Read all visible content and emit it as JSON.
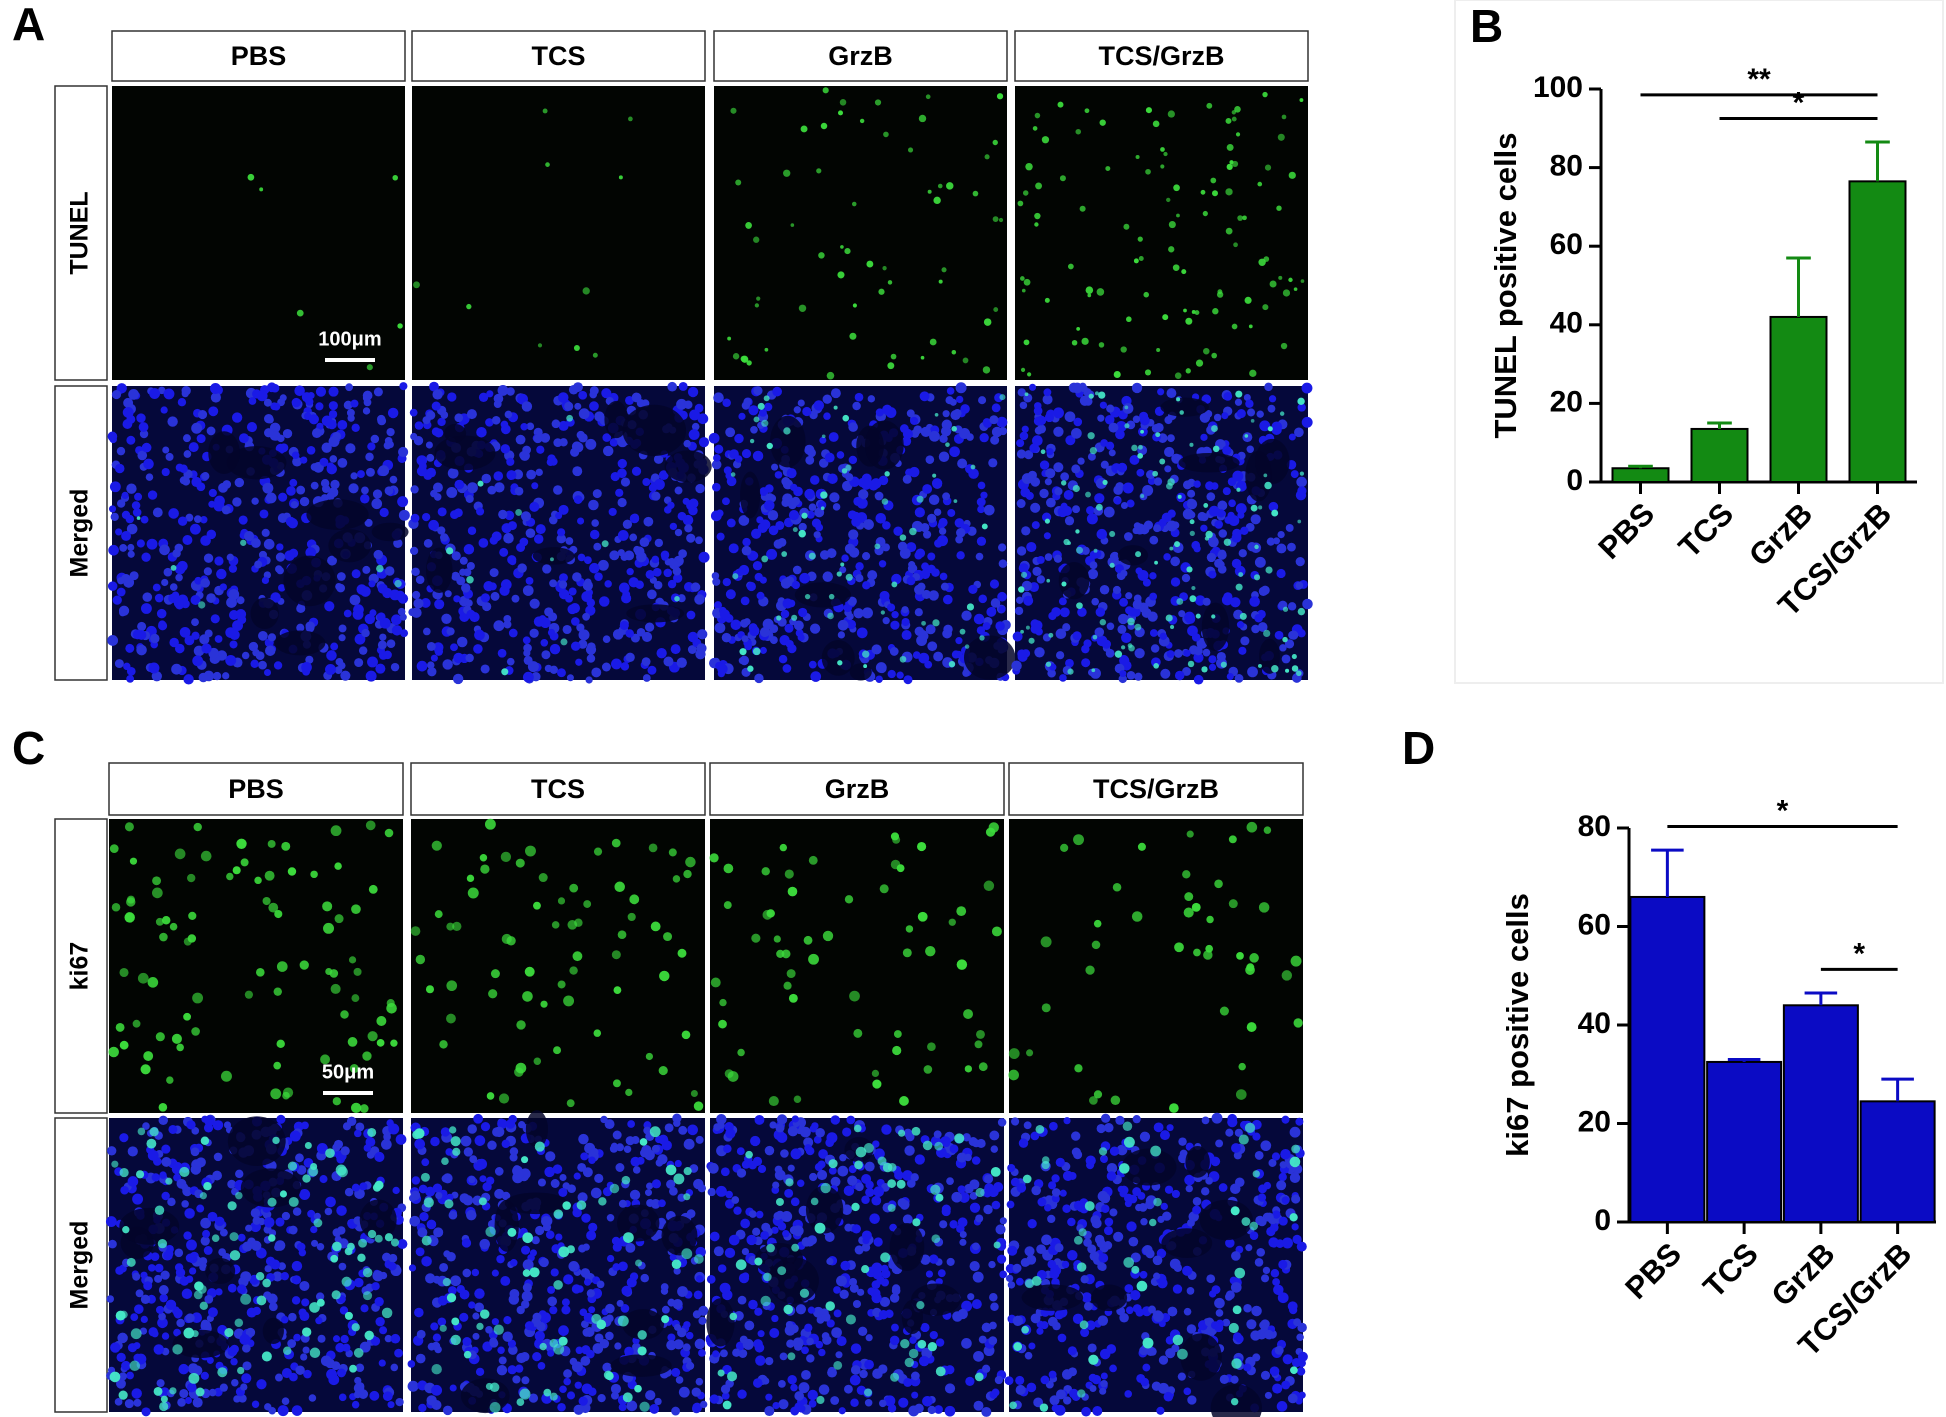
{
  "panels": [
    {
      "letter": "A",
      "columns": [
        "PBS",
        "TCS",
        "GrzB",
        "TCS/GrzB"
      ],
      "rows": [
        "TUNEL",
        "Merged"
      ],
      "scale_bar": "100μm"
    },
    {
      "letter": "C",
      "columns": [
        "PBS",
        "TCS",
        "GrzB",
        "TCS/GrzB"
      ],
      "rows": [
        "ki67",
        "Merged"
      ],
      "scale_bar": "50μm"
    }
  ],
  "chart_data": [
    {
      "type": "bar",
      "letter": "B",
      "ylabel": "TUNEL positive cells",
      "categories": [
        "PBS",
        "TCS",
        "GrzB",
        "TCS/GrzB"
      ],
      "values": [
        3.5,
        13.5,
        42,
        76.5
      ],
      "errors": [
        0.5,
        1.5,
        15,
        10
      ],
      "color": "#138a13",
      "ylim": [
        0,
        100
      ],
      "yticks": [
        0,
        20,
        40,
        60,
        80,
        100
      ],
      "annotations": [
        {
          "text": "**",
          "from": 0,
          "to": 3
        },
        {
          "text": "*",
          "from": 1,
          "to": 3
        }
      ]
    },
    {
      "type": "bar",
      "letter": "D",
      "ylabel": "ki67 positive cells",
      "categories": [
        "PBS",
        "TCS",
        "GrzB",
        "TCS/GrzB"
      ],
      "values": [
        66,
        32.5,
        44,
        24.5
      ],
      "errors": [
        9.5,
        0.5,
        2.5,
        4.5
      ],
      "color": "#0b0bc4",
      "ylim": [
        0,
        80
      ],
      "yticks": [
        0,
        20,
        40,
        60,
        80
      ],
      "annotations": [
        {
          "text": "*",
          "from": 0,
          "to": 3
        },
        {
          "text": "*",
          "from": 2,
          "to": 3
        }
      ]
    }
  ]
}
